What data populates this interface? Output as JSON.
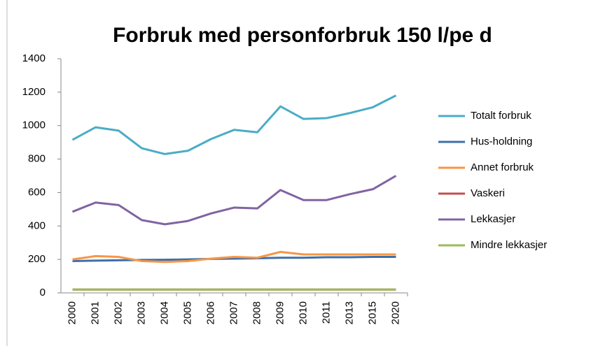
{
  "chart_data": {
    "type": "line",
    "title": "Forbruk med personforbruk  150 l/pe d",
    "categories": [
      "2000",
      "2001",
      "2002",
      "2003",
      "2004",
      "2005",
      "2006",
      "2007",
      "2008",
      "2009",
      "2010",
      "2011",
      "2013",
      "2015",
      "2020"
    ],
    "series": [
      {
        "name": "Totalt forbruk",
        "color": "#4bacc6",
        "values": [
          915,
          990,
          970,
          865,
          830,
          850,
          920,
          975,
          960,
          1115,
          1040,
          1045,
          1075,
          1110,
          1180
        ]
      },
      {
        "name": "Hus-holdning",
        "color": "#3f6fa8",
        "values": [
          190,
          193,
          195,
          197,
          198,
          200,
          203,
          205,
          207,
          210,
          210,
          213,
          213,
          215,
          215
        ]
      },
      {
        "name": "Annet forbruk",
        "color": "#f79646",
        "values": [
          200,
          220,
          215,
          190,
          185,
          190,
          205,
          215,
          210,
          245,
          230,
          230,
          230,
          230,
          230
        ]
      },
      {
        "name": "Vaskeri",
        "color": "#c0504d",
        "values": [
          20,
          20,
          20,
          20,
          20,
          20,
          20,
          20,
          20,
          20,
          20,
          20,
          20,
          20,
          20
        ]
      },
      {
        "name": "Lekkasjer",
        "color": "#8064a2",
        "values": [
          485,
          540,
          525,
          435,
          410,
          430,
          475,
          510,
          505,
          615,
          555,
          555,
          590,
          620,
          700
        ]
      },
      {
        "name": "Mindre lekkasjer",
        "color": "#9bbb59",
        "values": [
          20,
          20,
          20,
          20,
          20,
          20,
          20,
          20,
          20,
          20,
          20,
          20,
          20,
          20,
          20
        ]
      }
    ],
    "ylim": [
      0,
      1400
    ],
    "yticks": [
      0,
      200,
      400,
      600,
      800,
      1000,
      1200,
      1400
    ],
    "grid": false,
    "legend": "right"
  }
}
